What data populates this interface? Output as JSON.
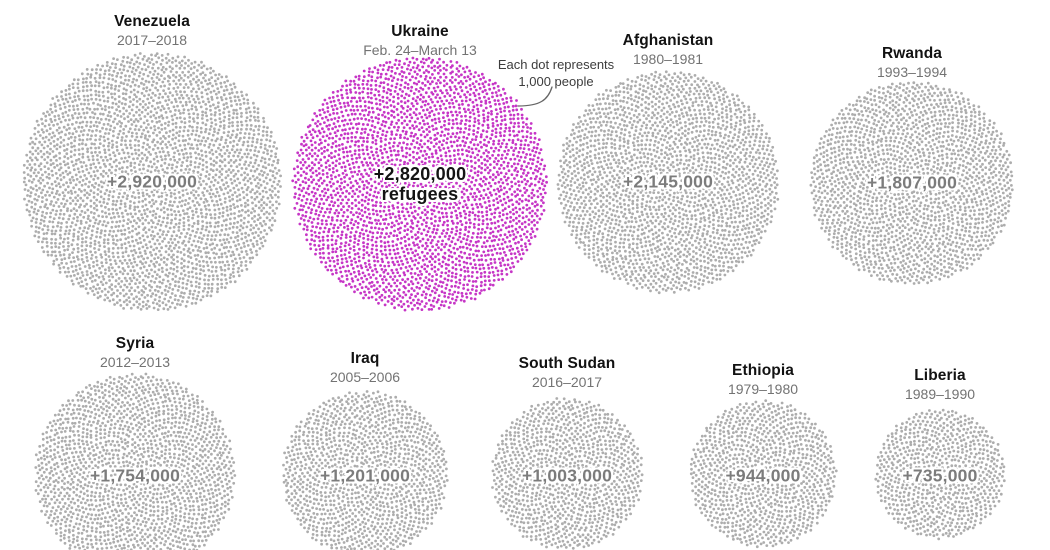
{
  "chart_data": {
    "type": "dot-density",
    "dot_unit": 1000,
    "annotation": {
      "line1": "Each dot represents",
      "line2": "1,000 people"
    },
    "colors": {
      "dot_default": "#adadad",
      "dot_highlight": "#c636c6",
      "value_label_default": "#7c7c7c",
      "value_label_highlight": "#141414",
      "connector": "#666666"
    },
    "series": [
      {
        "country": "Venezuela",
        "period": "2017–2018",
        "label": "+2,920,000",
        "value": 2920000,
        "highlighted": false
      },
      {
        "country": "Ukraine",
        "period": "Feb. 24–March 13",
        "label": "+2,820,000",
        "label_line2": "refugees",
        "value": 2820000,
        "highlighted": true
      },
      {
        "country": "Afghanistan",
        "period": "1980–1981",
        "label": "+2,145,000",
        "value": 2145000,
        "highlighted": false
      },
      {
        "country": "Rwanda",
        "period": "1993–1994",
        "label": "+1,807,000",
        "value": 1807000,
        "highlighted": false
      },
      {
        "country": "Syria",
        "period": "2012–2013",
        "label": "+1,754,000",
        "value": 1754000,
        "highlighted": false
      },
      {
        "country": "Iraq",
        "period": "2005–2006",
        "label": "+1,201,000",
        "value": 1201000,
        "highlighted": false
      },
      {
        "country": "South Sudan",
        "period": "2016–2017",
        "label": "+1,003,000",
        "value": 1003000,
        "highlighted": false
      },
      {
        "country": "Ethiopia",
        "period": "1979–1980",
        "label": "+944,000",
        "value": 944000,
        "highlighted": false
      },
      {
        "country": "Liberia",
        "period": "1989–1990",
        "label": "+735,000",
        "value": 735000,
        "highlighted": false
      }
    ]
  }
}
